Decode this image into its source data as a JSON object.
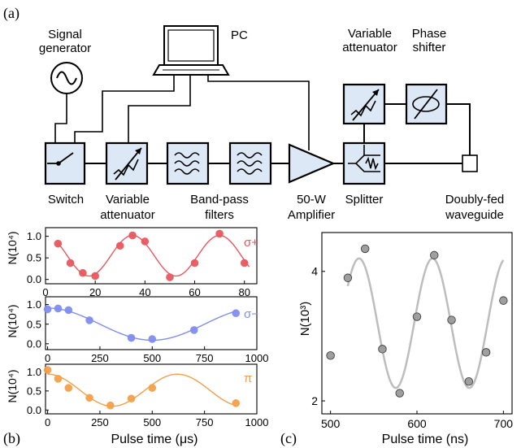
{
  "panel_labels": {
    "a": "(a)",
    "b": "(b)",
    "c": "(c)"
  },
  "diagram": {
    "signal_generator": [
      "Signal",
      "generator"
    ],
    "pc": "PC",
    "variable_attenuator_top": [
      "Variable",
      "attenuator"
    ],
    "phase_shifter": [
      "Phase",
      "shifter"
    ],
    "switch": "Switch",
    "variable_attenuator": [
      "Variable",
      "attenuator"
    ],
    "band_pass_filters": [
      "Band-pass",
      "filters"
    ],
    "amplifier": [
      "50-W",
      "Amplifier"
    ],
    "splitter": "Splitter",
    "waveguide": [
      "Doubly-fed",
      "waveguide"
    ]
  },
  "colors": {
    "sigma_plus": "#e8575f",
    "sigma_minus": "#7f8df0",
    "pi": "#f2a04a",
    "panel_c": "#bdbdbd",
    "box_fill": "#dce8f5"
  },
  "chart_data": [
    {
      "type": "scatter",
      "panel": "b-top",
      "series_label": "σ+",
      "ylabel": "N(10⁴)",
      "xlim": [
        0,
        85
      ],
      "ylim": [
        -0.1,
        1.2
      ],
      "xticks": [
        "0",
        "20",
        "40",
        "60",
        "80"
      ],
      "yticks": [
        "0.0",
        "0.5",
        "1.0"
      ],
      "x": [
        5,
        10,
        15,
        20,
        30,
        35,
        40,
        50,
        60,
        70,
        80
      ],
      "y": [
        0.83,
        0.38,
        0.15,
        0.08,
        0.78,
        1.02,
        0.88,
        0.05,
        0.38,
        1.06,
        0.38
      ],
      "fit": {
        "offset": 0.55,
        "amplitude": 0.47,
        "period": 35,
        "peak_at": 35
      }
    },
    {
      "type": "scatter",
      "panel": "b-middle",
      "series_label": "σ−",
      "ylabel": "N(10⁴)",
      "xlim": [
        -10,
        1000
      ],
      "ylim": [
        -0.15,
        1.2
      ],
      "xticks": [
        "0",
        "250",
        "500",
        "750",
        "1000"
      ],
      "yticks": [
        "0.0",
        "0.5",
        "1.0"
      ],
      "x": [
        0,
        50,
        100,
        200,
        400,
        500,
        700,
        900
      ],
      "y": [
        0.88,
        0.9,
        0.86,
        0.6,
        0.15,
        0.12,
        0.35,
        0.78
      ],
      "fit": {
        "offset": 0.5,
        "amplitude": 0.41,
        "period": 1000,
        "peak_at": 0
      }
    },
    {
      "type": "scatter",
      "panel": "b-bottom",
      "series_label": "π",
      "ylabel": "N(10⁴)",
      "xlabel": "Pulse time (μs)",
      "xlim": [
        -10,
        1000
      ],
      "ylim": [
        -0.1,
        1.2
      ],
      "xticks": [
        "0",
        "250",
        "500",
        "750",
        "1000"
      ],
      "yticks": [
        "0.0",
        "0.5",
        "1.0"
      ],
      "x": [
        0,
        50,
        100,
        200,
        300,
        400,
        500,
        900
      ],
      "y": [
        1.05,
        0.82,
        0.58,
        0.32,
        0.12,
        0.3,
        0.58,
        0.18
      ],
      "fit": {
        "offset": 0.52,
        "amplitude": 0.42,
        "period": 620,
        "peak_at": 0
      }
    },
    {
      "type": "scatter",
      "panel": "c",
      "ylabel": "N(10³)",
      "xlabel": "Pulse time (ns)",
      "xlim": [
        490,
        710
      ],
      "ylim": [
        1.8,
        4.6
      ],
      "xticks": [
        "500",
        "600",
        "700"
      ],
      "yticks": [
        "2",
        "4"
      ],
      "x": [
        500,
        520,
        540,
        560,
        580,
        600,
        620,
        640,
        660,
        680,
        700
      ],
      "y": [
        2.7,
        3.9,
        4.35,
        2.8,
        2.12,
        3.3,
        4.25,
        3.25,
        2.3,
        2.75,
        3.55
      ],
      "fit": {
        "offset": 3.2,
        "amplitude": 1.0,
        "period": 85,
        "peak_at": 533
      }
    }
  ]
}
